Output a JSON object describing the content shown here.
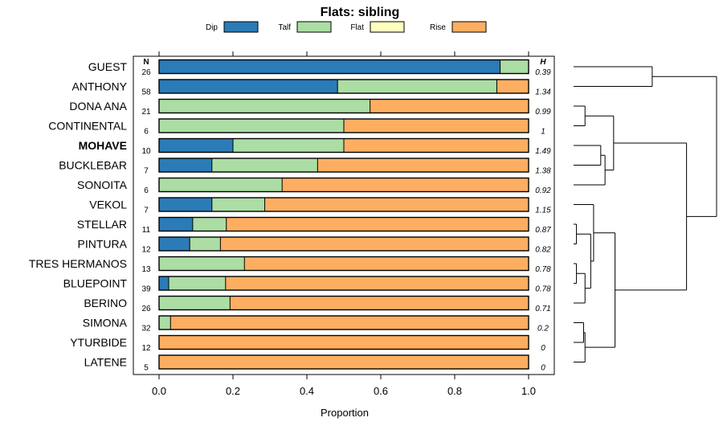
{
  "chart_data": {
    "type": "bar",
    "orientation": "horizontal",
    "stacked": true,
    "title": "Flats: sibling",
    "xlabel": "Proportion",
    "xlim": [
      0,
      1
    ],
    "xticks": [
      "0.0",
      "0.2",
      "0.4",
      "0.6",
      "0.8",
      "1.0"
    ],
    "n_header": "N",
    "h_header": "H",
    "highlight_category": "MOHAVE",
    "colors": {
      "Dip": "#2b7bb7",
      "Talf": "#abdda4",
      "Flat": "#ffffbf",
      "Rise": "#fdae61"
    },
    "legend": [
      "Dip",
      "Talf",
      "Flat",
      "Rise"
    ],
    "categories": [
      "GUEST",
      "ANTHONY",
      "DONA ANA",
      "CONTINENTAL",
      "MOHAVE",
      "BUCKLEBAR",
      "SONOITA",
      "VEKOL",
      "STELLAR",
      "PINTURA",
      "TRES HERMANOS",
      "BLUEPOINT",
      "BERINO",
      "SIMONA",
      "YTURBIDE",
      "LATENE"
    ],
    "n": [
      "26",
      "58",
      "21",
      "6",
      "10",
      "7",
      "6",
      "7",
      "11",
      "12",
      "13",
      "39",
      "26",
      "32",
      "12",
      "5"
    ],
    "h": [
      "0.39",
      "1.34",
      "0.99",
      "1",
      "1.49",
      "1.38",
      "0.92",
      "1.15",
      "0.87",
      "0.82",
      "0.78",
      "0.78",
      "0.71",
      "0.2",
      "0",
      "0"
    ],
    "series": [
      {
        "name": "Dip",
        "values": [
          0.923,
          0.483,
          0,
          0,
          0.2,
          0.143,
          0,
          0.143,
          0.091,
          0.083,
          0,
          0.026,
          0,
          0,
          0,
          0
        ]
      },
      {
        "name": "Talf",
        "values": [
          0.077,
          0.431,
          0.571,
          0.5,
          0.3,
          0.286,
          0.333,
          0.143,
          0.091,
          0.083,
          0.231,
          0.154,
          0.192,
          0.031,
          0,
          0
        ]
      },
      {
        "name": "Flat",
        "values": [
          0,
          0,
          0,
          0,
          0,
          0,
          0,
          0,
          0,
          0,
          0,
          0,
          0,
          0,
          0,
          0
        ]
      },
      {
        "name": "Rise",
        "values": [
          0,
          0.086,
          0.429,
          0.5,
          0.5,
          0.571,
          0.667,
          0.714,
          0.818,
          0.834,
          0.769,
          0.82,
          0.808,
          0.969,
          1,
          1
        ]
      }
    ],
    "dendrogram": {
      "leaves": [
        "GUEST",
        "ANTHONY",
        "DONA ANA",
        "CONTINENTAL",
        "MOHAVE",
        "BUCKLEBAR",
        "SONOITA",
        "VEKOL",
        "STELLAR",
        "PINTURA",
        "TRES HERMANOS",
        "BLUEPOINT",
        "BERINO",
        "SIMONA",
        "YTURBIDE",
        "LATENE"
      ],
      "merges": [
        [
          0,
          1,
          0.55
        ],
        [
          2,
          3,
          0.08
        ],
        [
          4,
          5,
          0.19
        ],
        [
          18,
          6,
          0.22
        ],
        [
          17,
          19,
          0.28
        ],
        [
          8,
          9,
          0.02
        ],
        [
          10,
          11,
          0.02
        ],
        [
          22,
          12,
          0.08
        ],
        [
          21,
          23,
          0.12
        ],
        [
          24,
          7,
          0.14
        ],
        [
          13,
          14,
          0.07
        ],
        [
          26,
          15,
          0.08
        ],
        [
          25,
          27,
          0.29
        ],
        [
          20,
          28,
          0.79
        ],
        [
          16,
          29,
          1.0
        ]
      ]
    }
  }
}
